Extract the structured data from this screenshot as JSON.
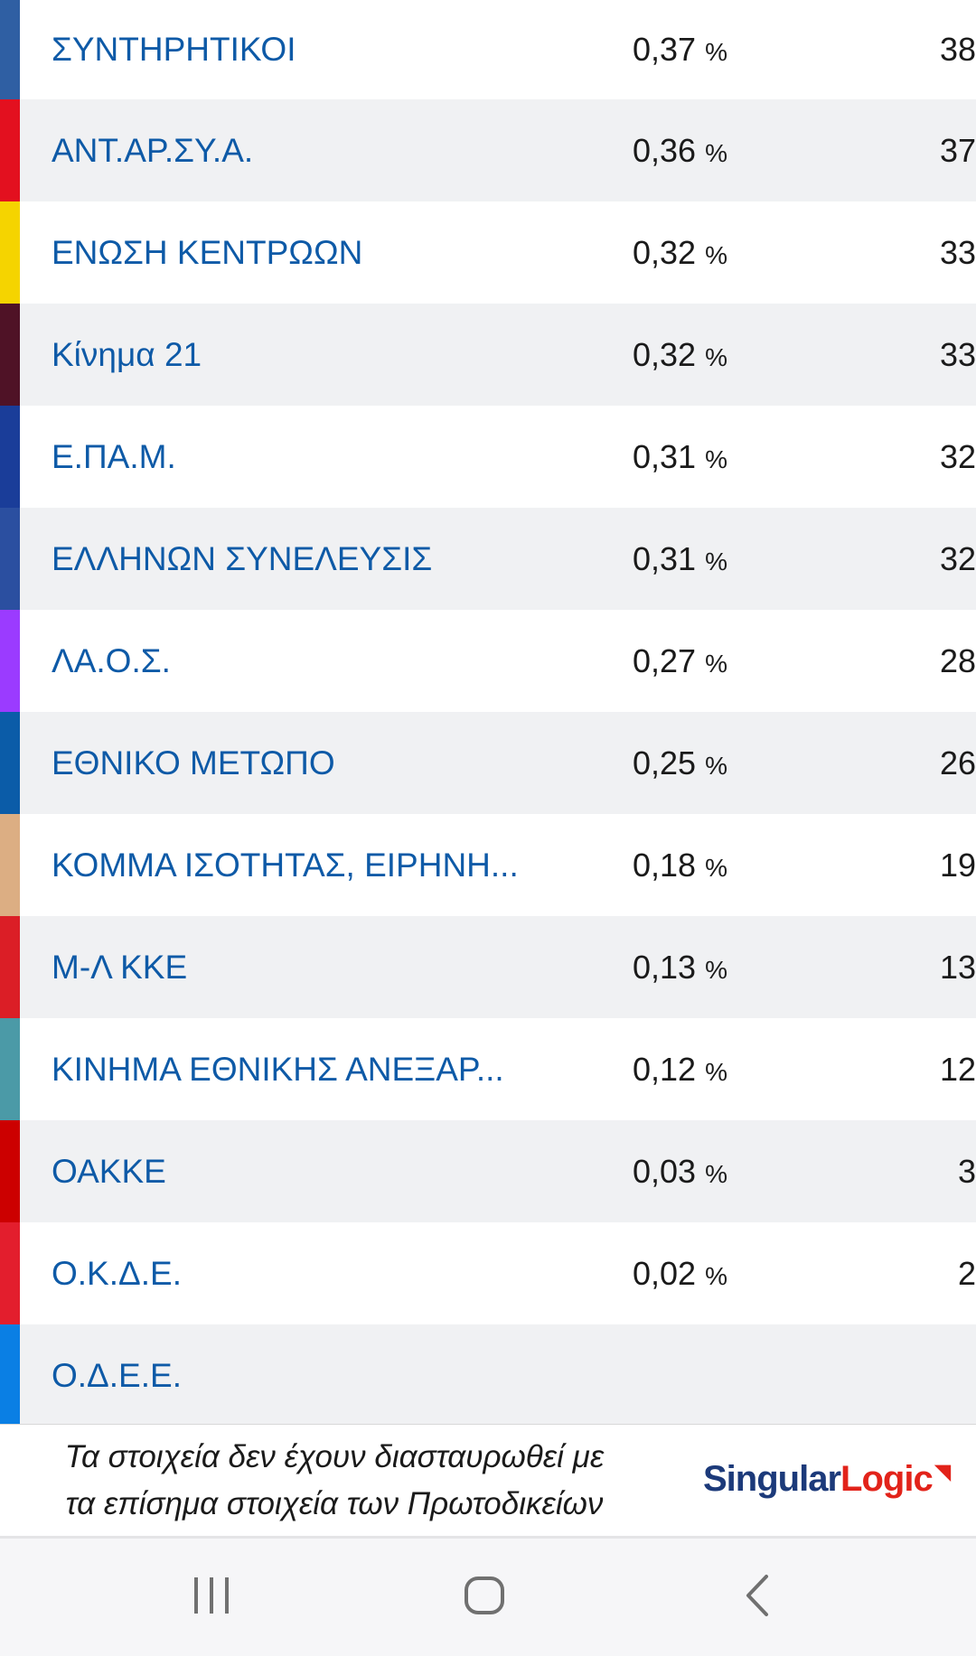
{
  "parties": [
    {
      "name": "ΣΥΝΤΗΡΗΤΙΚΟΙ",
      "percent": "0,37",
      "seats": "38",
      "color": "#2f5fa3"
    },
    {
      "name": "ΑΝΤ.ΑΡ.ΣΥ.Α.",
      "percent": "0,36",
      "seats": "37",
      "color": "#e3101f"
    },
    {
      "name": "ΕΝΩΣΗ ΚΕΝΤΡΩΩΝ",
      "percent": "0,32",
      "seats": "33",
      "color": "#f5d400"
    },
    {
      "name": "Κίνημα 21",
      "percent": "0,32",
      "seats": "33",
      "color": "#4f1226"
    },
    {
      "name": "Ε.ΠΑ.Μ.",
      "percent": "0,31",
      "seats": "32",
      "color": "#1a3d99"
    },
    {
      "name": "ΕΛΛΗΝΩΝ ΣΥΝΕΛΕΥΣΙΣ",
      "percent": "0,31",
      "seats": "32",
      "color": "#2b4fa0"
    },
    {
      "name": "ΛΑ.Ο.Σ.",
      "percent": "0,27",
      "seats": "28",
      "color": "#9b3bff"
    },
    {
      "name": "ΕΘΝΙΚΟ ΜΕΤΩΠΟ",
      "percent": "0,25",
      "seats": "26",
      "color": "#0b5ca8"
    },
    {
      "name": "ΚΟΜΜΑ ΙΣΟΤΗΤΑΣ, ΕΙΡΗΝΗ...",
      "percent": "0,18",
      "seats": "19",
      "color": "#dcae83"
    },
    {
      "name": "Μ-Λ ΚΚΕ",
      "percent": "0,13",
      "seats": "13",
      "color": "#db1e26"
    },
    {
      "name": "ΚΙΝΗΜΑ ΕΘΝΙΚΗΣ ΑΝΕΞΑΡ...",
      "percent": "0,12",
      "seats": "12",
      "color": "#4b9aa7"
    },
    {
      "name": "ΟΑΚΚΕ",
      "percent": "0,03",
      "seats": "3",
      "color": "#cc0000"
    },
    {
      "name": "Ο.Κ.Δ.Ε.",
      "percent": "0,02",
      "seats": "2",
      "color": "#e31e2d"
    },
    {
      "name": "Ο.Δ.Ε.Ε.",
      "percent": "",
      "seats": "",
      "color": "#0a7fe4"
    }
  ],
  "percent_sign": "%",
  "footer": {
    "disclaimer_line1": "Τα στοιχεία δεν έχουν διασταυρωθεί με",
    "disclaimer_line2": "τα επίσημα στοιχεία των Πρωτοδικείων",
    "brand_part1": "Singular",
    "brand_part2": "Logic"
  },
  "navbar": {
    "icons": [
      "recent-apps-icon",
      "home-icon",
      "back-icon"
    ]
  }
}
